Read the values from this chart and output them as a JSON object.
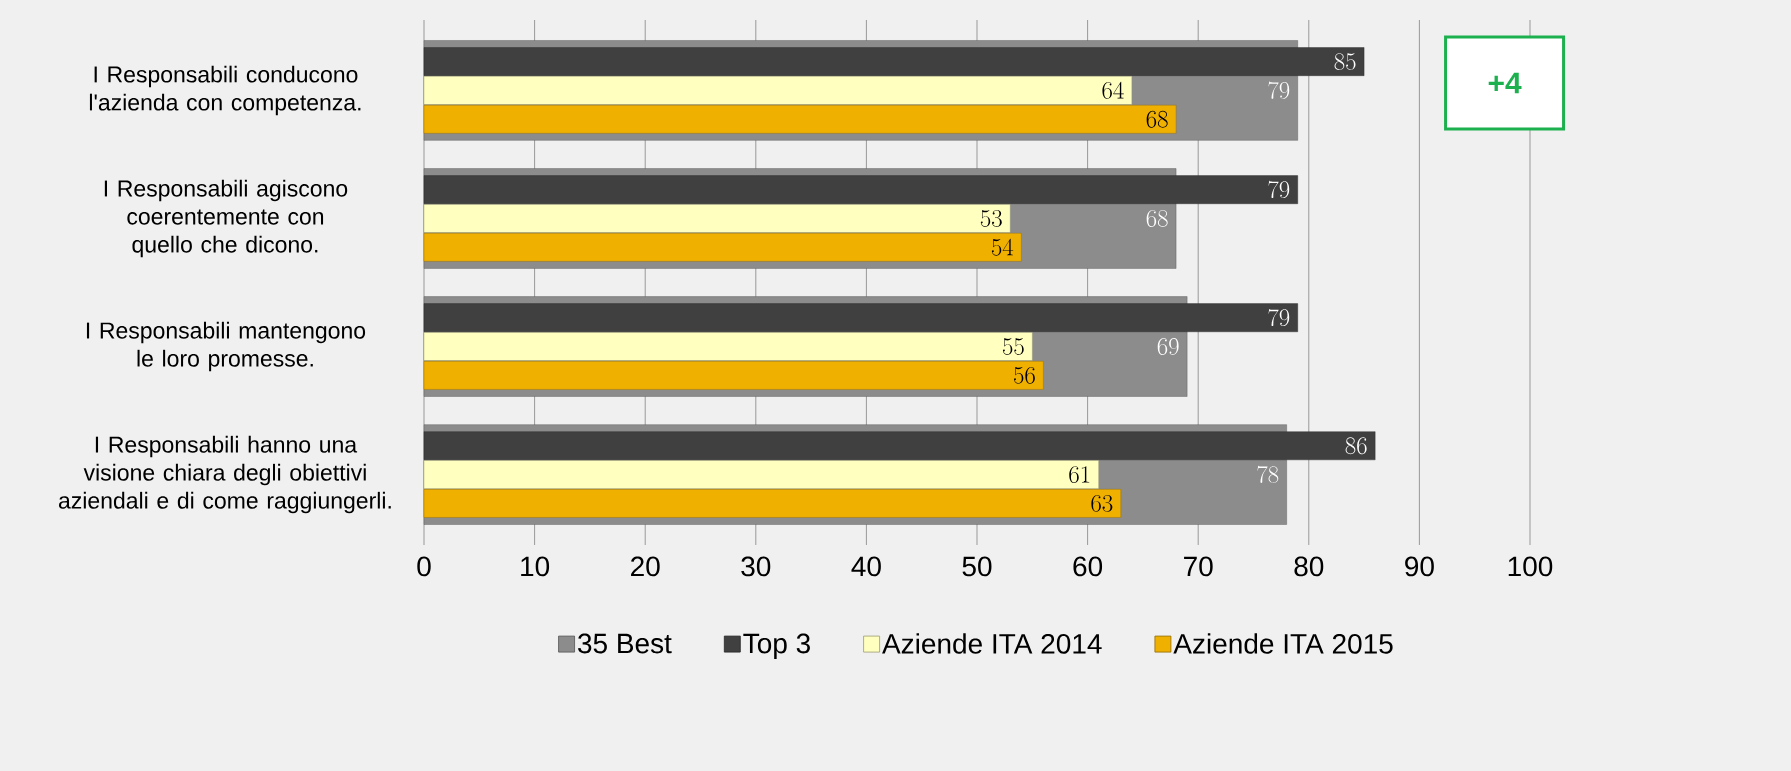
{
  "chart_data": {
    "type": "bar",
    "orientation": "horizontal",
    "categories": [
      "I Responsabili conducono l'azienda con competenza.",
      "I Responsabili agiscono coerentemente con quello che dicono.",
      "I Responsabili mantengono le loro promesse.",
      "I Responsabili hanno una visione chiara degli obiettivi aziendali e di come raggiungerli."
    ],
    "series": [
      {
        "name": "35 Best",
        "color": "#8c8c8c",
        "values": [
          79,
          68,
          69,
          78
        ]
      },
      {
        "name": "Top 3",
        "color": "#404040",
        "values": [
          85,
          79,
          79,
          86
        ]
      },
      {
        "name": "Aziende ITA 2014",
        "color": "#ffffc0",
        "values": [
          64,
          53,
          55,
          61
        ]
      },
      {
        "name": "Aziende ITA 2015",
        "color": "#f0b000",
        "values": [
          68,
          54,
          56,
          63
        ]
      }
    ],
    "xlim": [
      0,
      100
    ],
    "xticks": [
      0,
      10,
      20,
      30,
      40,
      50,
      60,
      70,
      80,
      90,
      100
    ],
    "grid": "x",
    "legend": "bottom",
    "data_labels": true,
    "annotations": [
      "+4"
    ]
  }
}
